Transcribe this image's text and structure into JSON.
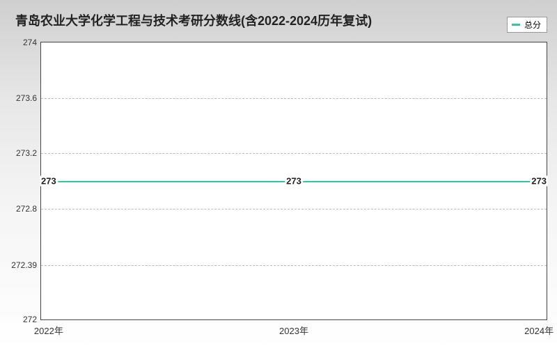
{
  "chart": {
    "type": "line",
    "title": "青岛农业大学化学工程与技术考研分数线(含2022-2024历年复试)",
    "title_fontsize": 18,
    "legend": {
      "label": "总分",
      "color": "#2fc8a0"
    },
    "background_gradient_top": "#cfcfcf",
    "background_gradient_bottom": "#ffffff",
    "plot_background": "#ffffff",
    "grid_color": "#bbbbbb",
    "axis_color": "#444444",
    "line_color": "#2fc8a0",
    "line_width": 2,
    "x": {
      "categories": [
        "2022年",
        "2023年",
        "2024年"
      ],
      "positions_pct": [
        1.5,
        50,
        98.5
      ]
    },
    "y": {
      "min": 272,
      "max": 274,
      "ticks": [
        272,
        272.39,
        272.8,
        273.2,
        273.6,
        274
      ],
      "tick_labels": [
        "272",
        "272.39",
        "272.8",
        "273.2",
        "273.6",
        "274"
      ]
    },
    "series": {
      "values": [
        273,
        273,
        273
      ],
      "value_labels": [
        "273",
        "273",
        "273"
      ]
    }
  }
}
